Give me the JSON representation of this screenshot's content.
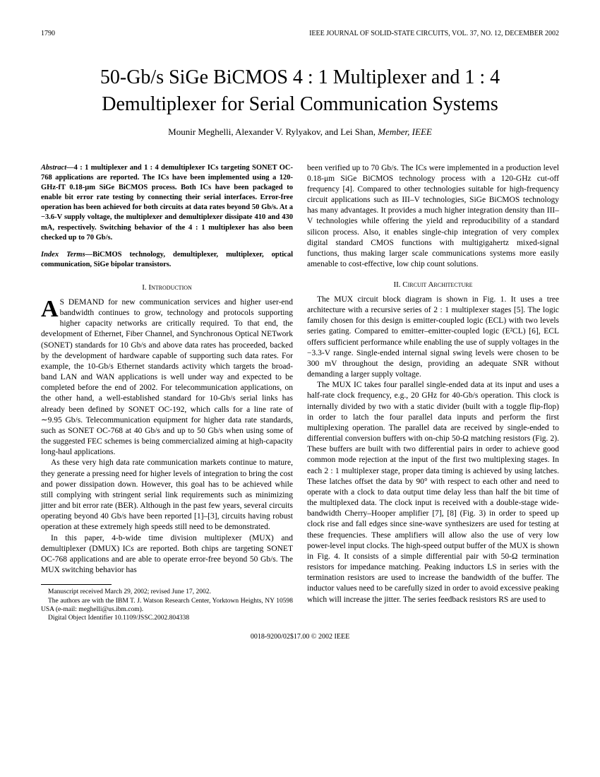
{
  "header": {
    "page_number": "1790",
    "journal": "IEEE JOURNAL OF SOLID-STATE CIRCUITS, VOL. 37, NO. 12, DECEMBER 2002"
  },
  "title": "50-Gb/s SiGe BiCMOS 4 : 1 Multiplexer and 1 : 4 Demultiplexer for Serial Communication Systems",
  "authors": {
    "names": "Mounir Meghelli, Alexander V. Rylyakov, and Lei Shan",
    "suffix": ", Member, IEEE"
  },
  "abstract": {
    "label": "Abstract—",
    "text": "4 : 1 multiplexer and 1 : 4 demultiplexer ICs targeting SONET OC-768 applications are reported. The ICs have been implemented using a 120-GHz-fT 0.18-μm SiGe BiCMOS process. Both ICs have been packaged to enable bit error rate testing by connecting their serial interfaces. Error-free operation has been achieved for both circuits at data rates beyond 50 Gb/s. At a −3.6-V supply voltage, the multiplexer and demultiplexer dissipate 410 and 430 mA, respectively. Switching behavior of the 4 : 1 multiplexer has also been checked up to 70 Gb/s."
  },
  "index_terms": {
    "label": "Index Terms—",
    "text": "BiCMOS technology, demultiplexer, multiplexer, optical communication, SiGe bipolar transistors."
  },
  "sections": {
    "intro_heading": "I. Introduction",
    "intro_p1_first": "S DEMAND for new communication services and higher user-end bandwidth continues to grow, technology and protocols supporting higher capacity networks are critically required. To that end, the development of Ethernet, Fiber Channel, and Synchronous Optical NETwork (SONET) standards for 10 Gb/s and above data rates has proceeded, backed by the development of hardware capable of supporting such data rates. For example, the 10-Gb/s Ethernet standards activity which targets the broad-band LAN and WAN applications is well under way and expected to be completed before the end of 2002. For telecommunication applications, on the other hand, a well-established standard for 10-Gb/s serial links has already been defined by SONET OC-192, which calls for a line rate of ∼9.95 Gb/s. Telecommunication equipment for higher data rate standards, such as SONET OC-768 at 40 Gb/s and up to 50 Gb/s when using some of the suggested FEC schemes is being commercialized aiming at high-capacity long-haul applications.",
    "intro_p2": "As these very high data rate communication markets continue to mature, they generate a pressing need for higher levels of integration to bring the cost and power dissipation down. However, this goal has to be achieved while still complying with stringent serial link requirements such as minimizing jitter and bit error rate (BER). Although in the past few years, several circuits operating beyond 40 Gb/s have been reported [1]–[3], circuits having robust operation at these extremely high speeds still need to be demonstrated.",
    "intro_p3": "In this paper, 4-b-wide time division multiplexer (MUX) and demultiplexer (DMUX) ICs are reported. Both chips are targeting SONET OC-768 applications and are able to operate error-free beyond 50 Gb/s. The MUX switching behavior has",
    "col2_p1": "been verified up to 70 Gb/s. The ICs were implemented in a production level 0.18-μm SiGe BiCMOS technology process with a 120-GHz cut-off frequency [4]. Compared to other technologies suitable for high-frequency circuit applications such as III–V technologies, SiGe BiCMOS technology has many advantages. It provides a much higher integration density than III–V technologies while offering the yield and reproducibility of a standard silicon process. Also, it enables single-chip integration of very complex digital standard CMOS functions with multigigahertz mixed-signal functions, thus making larger scale communications systems more easily amenable to cost-effective, low chip count solutions.",
    "arch_heading": "II. Circuit Architecture",
    "arch_p1": "The MUX circuit block diagram is shown in Fig. 1. It uses a tree architecture with a recursive series of 2 : 1 multiplexer stages [5]. The logic family chosen for this design is emitter-coupled logic (ECL) with two levels series gating. Compared to emitter–emitter-coupled logic (E²CL) [6], ECL offers sufficient performance while enabling the use of supply voltages in the −3.3-V range. Single-ended internal signal swing levels were chosen to be 300 mV throughout the design, providing an adequate SNR without demanding a larger supply voltage.",
    "arch_p2": "The MUX IC takes four parallel single-ended data at its input and uses a half-rate clock frequency, e.g., 20 GHz for 40-Gb/s operation. This clock is internally divided by two with a static divider (built with a toggle flip-flop) in order to latch the four parallel data inputs and perform the first multiplexing operation. The parallel data are received by single-ended to differential conversion buffers with on-chip 50-Ω matching resistors (Fig. 2). These buffers are built with two differential pairs in order to achieve good common mode rejection at the input of the first two multiplexing stages. In each 2 : 1 multiplexer stage, proper data timing is achieved by using latches. These latches offset the data by 90° with respect to each other and need to operate with a clock to data output time delay less than half the bit time of the multiplexed data. The clock input is received with a double-stage wide-bandwidth Cherry–Hooper amplifier [7], [8] (Fig. 3) in order to speed up clock rise and fall edges since sine-wave synthesizers are used for testing at these frequencies. These amplifiers will allow also the use of very low power-level input clocks. The high-speed output buffer of the MUX is shown in Fig. 4. It consists of a simple differential pair with 50-Ω termination resistors for impedance matching. Peaking inductors LS in series with the termination resistors are used to increase the bandwidth of the buffer. The inductor values need to be carefully sized in order to avoid excessive peaking which will increase the jitter. The series feedback resistors RS are used to"
  },
  "footnotes": {
    "f1": "Manuscript received March 29, 2002; revised June 17, 2002.",
    "f2": "The authors are with the IBM T. J. Watson Research Center, Yorktown Heights, NY 10598 USA (e-mail: meghelli@us.ibm.com).",
    "f3": "Digital Object Identifier 10.1109/JSSC.2002.804338"
  },
  "footer": "0018-9200/02$17.00 © 2002 IEEE"
}
